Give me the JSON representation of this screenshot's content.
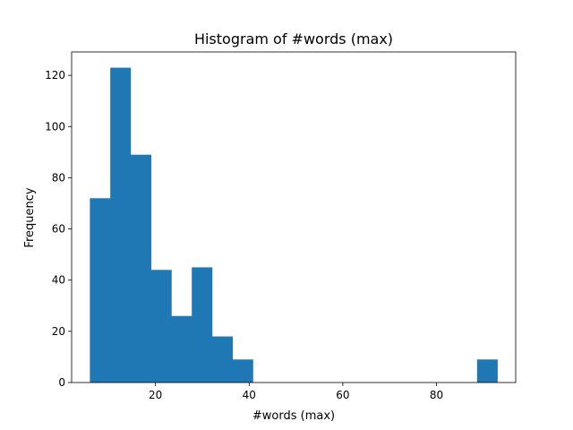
{
  "chart_data": {
    "type": "bar",
    "title": "Histogram of #words (max)",
    "xlabel": "#words (max)",
    "ylabel": "Frequency",
    "xlim": [
      2.1,
      96.9
    ],
    "ylim": [
      0,
      129.15
    ],
    "xticks": [
      20,
      40,
      60,
      80
    ],
    "yticks": [
      0,
      20,
      40,
      60,
      80,
      100,
      120
    ],
    "bar_color": "#1f77b4",
    "bins": [
      {
        "x0": 6.0,
        "x1": 10.35,
        "value": 72
      },
      {
        "x0": 10.35,
        "x1": 14.7,
        "value": 123
      },
      {
        "x0": 14.7,
        "x1": 19.05,
        "value": 89
      },
      {
        "x0": 19.05,
        "x1": 23.4,
        "value": 44
      },
      {
        "x0": 23.4,
        "x1": 27.75,
        "value": 26
      },
      {
        "x0": 27.75,
        "x1": 32.1,
        "value": 45
      },
      {
        "x0": 32.1,
        "x1": 36.45,
        "value": 18
      },
      {
        "x0": 36.45,
        "x1": 40.8,
        "value": 9
      },
      {
        "x0": 40.8,
        "x1": 45.15,
        "value": 0
      },
      {
        "x0": 45.15,
        "x1": 49.5,
        "value": 0
      },
      {
        "x0": 49.5,
        "x1": 53.85,
        "value": 0
      },
      {
        "x0": 53.85,
        "x1": 58.2,
        "value": 0
      },
      {
        "x0": 58.2,
        "x1": 62.55,
        "value": 0
      },
      {
        "x0": 62.55,
        "x1": 66.9,
        "value": 0
      },
      {
        "x0": 66.9,
        "x1": 71.25,
        "value": 0
      },
      {
        "x0": 71.25,
        "x1": 75.6,
        "value": 0
      },
      {
        "x0": 75.6,
        "x1": 79.95,
        "value": 0
      },
      {
        "x0": 79.95,
        "x1": 84.3,
        "value": 0
      },
      {
        "x0": 84.3,
        "x1": 88.65,
        "value": 0
      },
      {
        "x0": 88.65,
        "x1": 93.0,
        "value": 9
      }
    ],
    "grid": false,
    "legend": "none"
  }
}
